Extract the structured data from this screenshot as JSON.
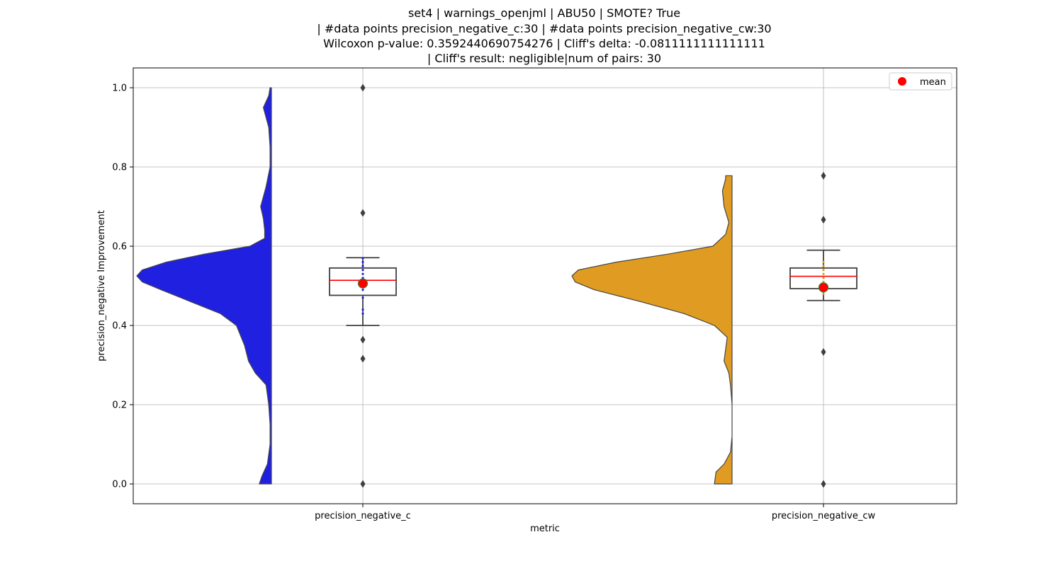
{
  "chart_data": {
    "type": "violin",
    "title_lines": [
      "set4 | warnings_openjml | ABU50 | SMOTE? True",
      "| #data points precision_negative_c:30 | #data points precision_negative_cw:30",
      "Wilcoxon p-value: 0.3592440690754276 | Cliff's delta: -0.0811111111111111",
      "| Cliff's result: negligible|num of pairs: 30"
    ],
    "xlabel": "metric",
    "ylabel": "precision_negative Improvement",
    "categories": [
      "precision_negative_c",
      "precision_negative_cw"
    ],
    "ylim": [
      -0.05,
      1.05
    ],
    "yticks": [
      0.0,
      0.2,
      0.4,
      0.6,
      0.8,
      1.0
    ],
    "ytick_labels": [
      "0.0",
      "0.2",
      "0.4",
      "0.6",
      "0.8",
      "1.0"
    ],
    "grid": true,
    "legend": {
      "position": "top-right",
      "entries": [
        {
          "label": "mean",
          "color": "#ff0000"
        }
      ]
    },
    "series": [
      {
        "category": "precision_negative_c",
        "color": "#2020e0",
        "density_profile": [
          [
            0.0,
            0.09
          ],
          [
            0.02,
            0.07
          ],
          [
            0.05,
            0.03
          ],
          [
            0.1,
            0.01
          ],
          [
            0.15,
            0.01
          ],
          [
            0.2,
            0.02
          ],
          [
            0.25,
            0.04
          ],
          [
            0.28,
            0.12
          ],
          [
            0.31,
            0.17
          ],
          [
            0.35,
            0.2
          ],
          [
            0.4,
            0.26
          ],
          [
            0.43,
            0.38
          ],
          [
            0.46,
            0.6
          ],
          [
            0.49,
            0.82
          ],
          [
            0.51,
            0.96
          ],
          [
            0.525,
            1.0
          ],
          [
            0.54,
            0.96
          ],
          [
            0.56,
            0.78
          ],
          [
            0.58,
            0.5
          ],
          [
            0.6,
            0.16
          ],
          [
            0.62,
            0.05
          ],
          [
            0.64,
            0.05
          ],
          [
            0.67,
            0.06
          ],
          [
            0.7,
            0.08
          ],
          [
            0.75,
            0.04
          ],
          [
            0.8,
            0.01
          ],
          [
            0.85,
            0.01
          ],
          [
            0.9,
            0.02
          ],
          [
            0.95,
            0.06
          ],
          [
            0.98,
            0.02
          ],
          [
            1.0,
            0.01
          ]
        ],
        "box": {
          "q1": 0.476,
          "median": 0.514,
          "q3": 0.545,
          "whisker_low": 0.4,
          "whisker_high": 0.571
        },
        "mean": 0.506,
        "outliers": [
          1.0,
          0.684,
          0.364,
          0.316,
          0.0
        ],
        "strip_points": [
          0.43,
          0.44,
          0.47,
          0.49,
          0.5,
          0.51,
          0.52,
          0.53,
          0.54,
          0.55,
          0.56,
          0.57
        ]
      },
      {
        "category": "precision_negative_cw",
        "color": "#e09c22",
        "density_profile": [
          [
            0.0,
            0.11
          ],
          [
            0.03,
            0.1
          ],
          [
            0.05,
            0.05
          ],
          [
            0.08,
            0.01
          ],
          [
            0.12,
            0.0
          ],
          [
            0.2,
            0.0
          ],
          [
            0.25,
            0.01
          ],
          [
            0.28,
            0.02
          ],
          [
            0.31,
            0.05
          ],
          [
            0.34,
            0.04
          ],
          [
            0.37,
            0.03
          ],
          [
            0.4,
            0.11
          ],
          [
            0.43,
            0.3
          ],
          [
            0.46,
            0.57
          ],
          [
            0.49,
            0.86
          ],
          [
            0.51,
            0.98
          ],
          [
            0.525,
            1.0
          ],
          [
            0.54,
            0.96
          ],
          [
            0.56,
            0.72
          ],
          [
            0.58,
            0.4
          ],
          [
            0.6,
            0.12
          ],
          [
            0.63,
            0.04
          ],
          [
            0.66,
            0.02
          ],
          [
            0.7,
            0.05
          ],
          [
            0.74,
            0.06
          ],
          [
            0.77,
            0.04
          ],
          [
            0.778,
            0.04
          ]
        ],
        "box": {
          "q1": 0.493,
          "median": 0.524,
          "q3": 0.545,
          "whisker_low": 0.463,
          "whisker_high": 0.59
        },
        "mean": 0.496,
        "outliers": [
          0.778,
          0.667,
          0.333,
          0.0
        ],
        "strip_points": [
          0.48,
          0.49,
          0.5,
          0.51,
          0.52,
          0.53,
          0.54,
          0.55,
          0.56
        ]
      }
    ]
  }
}
